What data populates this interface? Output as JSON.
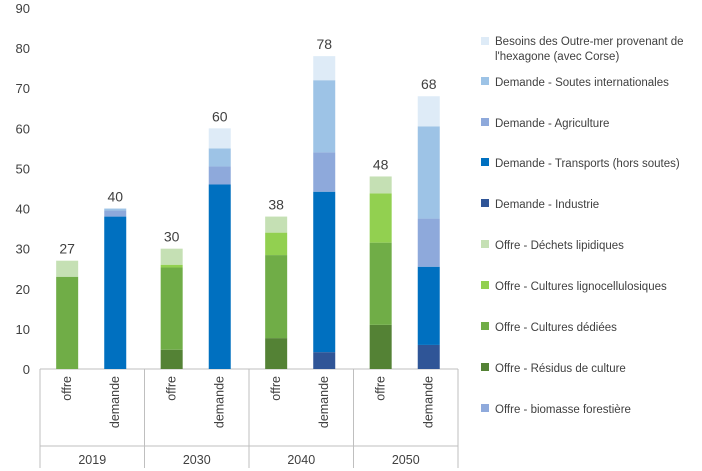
{
  "chart_data": {
    "type": "bar",
    "stacked": true,
    "title": "",
    "xlabel": "",
    "ylabel": "",
    "ylim": [
      0,
      90
    ],
    "yticks": [
      0,
      10,
      20,
      30,
      40,
      50,
      60,
      70,
      80,
      90
    ],
    "grid": false,
    "legend_position": "right",
    "groups": [
      "2019",
      "2030",
      "2040",
      "2050"
    ],
    "bar_labels": [
      "offre",
      "demande"
    ],
    "series": [
      {
        "name": "Offre - biomasse forestière",
        "color": "#8faadc",
        "stack": "offre",
        "values": [
          0,
          0,
          0,
          0
        ]
      },
      {
        "name": "Offre - Résidus de culture",
        "color": "#548235",
        "stack": "offre",
        "values": [
          0,
          4.8,
          7.7,
          11
        ]
      },
      {
        "name": "Offre - Cultures dédiées",
        "color": "#70ad47",
        "stack": "offre",
        "values": [
          23,
          20.5,
          20.7,
          20.5
        ]
      },
      {
        "name": "Offre - Cultures lignocellulosiques",
        "color": "#92d050",
        "stack": "offre",
        "values": [
          0,
          0.7,
          5.6,
          12.3
        ]
      },
      {
        "name": "Offre - Déchets lipidiques",
        "color": "#c5e0b4",
        "stack": "offre",
        "values": [
          4,
          4,
          4,
          4.2
        ]
      },
      {
        "name": "Demande - Industrie",
        "color": "#2f5597",
        "stack": "demande",
        "values": [
          0,
          0,
          4.2,
          6
        ]
      },
      {
        "name": "Demande - Transports (hors soutes)",
        "color": "#0070c0",
        "stack": "demande",
        "values": [
          38,
          46,
          40,
          19.5
        ]
      },
      {
        "name": "Demande - Agriculture",
        "color": "#8ea9db",
        "stack": "demande",
        "values": [
          1.5,
          4.5,
          9.8,
          12
        ]
      },
      {
        "name": "Demande - Soutes internationales",
        "color": "#9dc3e6",
        "stack": "demande",
        "values": [
          0.5,
          4.5,
          18,
          23
        ]
      },
      {
        "name": "Besoins des Outre-mer provenant de l'hexagone (avec Corse)",
        "color": "#deebf7",
        "stack": "demande",
        "values": [
          0,
          5,
          6,
          7.5
        ]
      }
    ],
    "totals": {
      "offre": [
        "27",
        "30",
        "38",
        "48"
      ],
      "demande": [
        "40",
        "60",
        "78",
        "68"
      ]
    },
    "legend_order": [
      "Besoins des Outre-mer provenant de l'hexagone (avec Corse)",
      "Demande - Soutes internationales",
      "Demande - Agriculture",
      "Demande - Transports (hors soutes)",
      "Demande - Industrie",
      "Offre - Déchets lipidiques",
      "Offre - Cultures lignocellulosiques",
      "Offre - Cultures dédiées",
      "Offre - Résidus de culture",
      "Offre - biomasse forestière"
    ]
  }
}
